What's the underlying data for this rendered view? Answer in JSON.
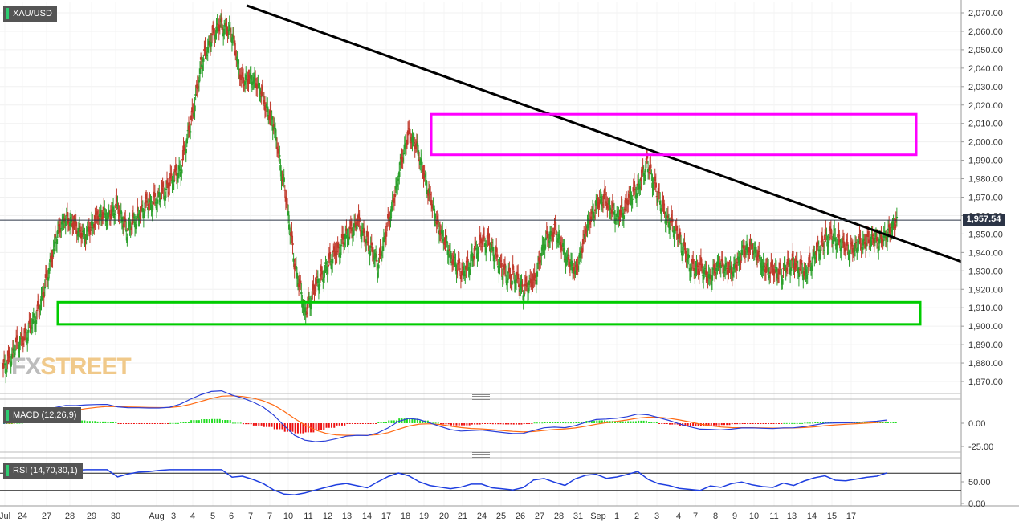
{
  "symbol": "XAU/USD",
  "current_price_label": "1,957.54",
  "watermark": {
    "part1": "FX",
    "part2": "STREET"
  },
  "macd": {
    "label": "MACD (12,26,9)",
    "ticks": [
      "0.00",
      "-25.00"
    ]
  },
  "rsi": {
    "label": "RSI (14,70,30,1)",
    "ticks": [
      "50.00",
      "0.00"
    ]
  },
  "colors": {
    "up": "#2ca02c",
    "down": "#c0392b",
    "trendline": "#000000",
    "resistance_box": "#ff00ff",
    "support_box": "#00cc00",
    "macd_line": "#2a3fd8",
    "signal_line": "#ff6a13",
    "rsi_line": "#1f3fe0"
  },
  "chart_data": {
    "type": "candlestick",
    "y_axis": {
      "min": 1865,
      "max": 2075,
      "ticks": [
        "2,070.00",
        "2,060.00",
        "2,050.00",
        "2,040.00",
        "2,030.00",
        "2,020.00",
        "2,010.00",
        "2,000.00",
        "1,990.00",
        "1,980.00",
        "1,970.00",
        "1,960.00",
        "1,950.00",
        "1,940.00",
        "1,930.00",
        "1,920.00",
        "1,910.00",
        "1,900.00",
        "1,890.00",
        "1,880.00",
        "1,870.00"
      ]
    },
    "x_axis": {
      "ticks": [
        "Jul",
        "24",
        "27",
        "28",
        "29",
        "30",
        "Aug",
        "3",
        "4",
        "5",
        "6",
        "7",
        "7",
        "10",
        "11",
        "12",
        "13",
        "14",
        "17",
        "18",
        "19",
        "20",
        "21",
        "24",
        "25",
        "26",
        "27",
        "28",
        "31",
        "Sep",
        "1",
        "2",
        "3",
        "4",
        "7",
        "8",
        "9",
        "10",
        "11",
        "13",
        "14",
        "15",
        "17"
      ]
    },
    "closes": [
      1885,
      1893,
      1905,
      1920,
      1945,
      1960,
      1955,
      1948,
      1958,
      1962,
      1965,
      1950,
      1960,
      1968,
      1970,
      1975,
      1985,
      2010,
      2040,
      2055,
      2065,
      2060,
      2030,
      2035,
      2025,
      2010,
      1975,
      1935,
      1910,
      1920,
      1930,
      1940,
      1950,
      1955,
      1945,
      1935,
      1955,
      1980,
      2005,
      1995,
      1970,
      1950,
      1940,
      1930,
      1935,
      1945,
      1945,
      1930,
      1925,
      1920,
      1925,
      1945,
      1950,
      1940,
      1930,
      1950,
      1965,
      1970,
      1960,
      1965,
      1975,
      1990,
      1970,
      1955,
      1948,
      1935,
      1930,
      1925,
      1935,
      1930,
      1938,
      1942,
      1935,
      1930,
      1928,
      1935,
      1930,
      1938,
      1945,
      1950,
      1943,
      1942,
      1945,
      1948,
      1950,
      1957
    ],
    "annotations": {
      "trendline": [
        {
          "date": "Aug 6",
          "price": 2074
        },
        {
          "date": "Sep 17",
          "price": 1935
        }
      ],
      "resistance_zone": [
        1993,
        2015
      ],
      "support_zone": [
        1901,
        1913
      ]
    },
    "current_price": 1957.54
  }
}
